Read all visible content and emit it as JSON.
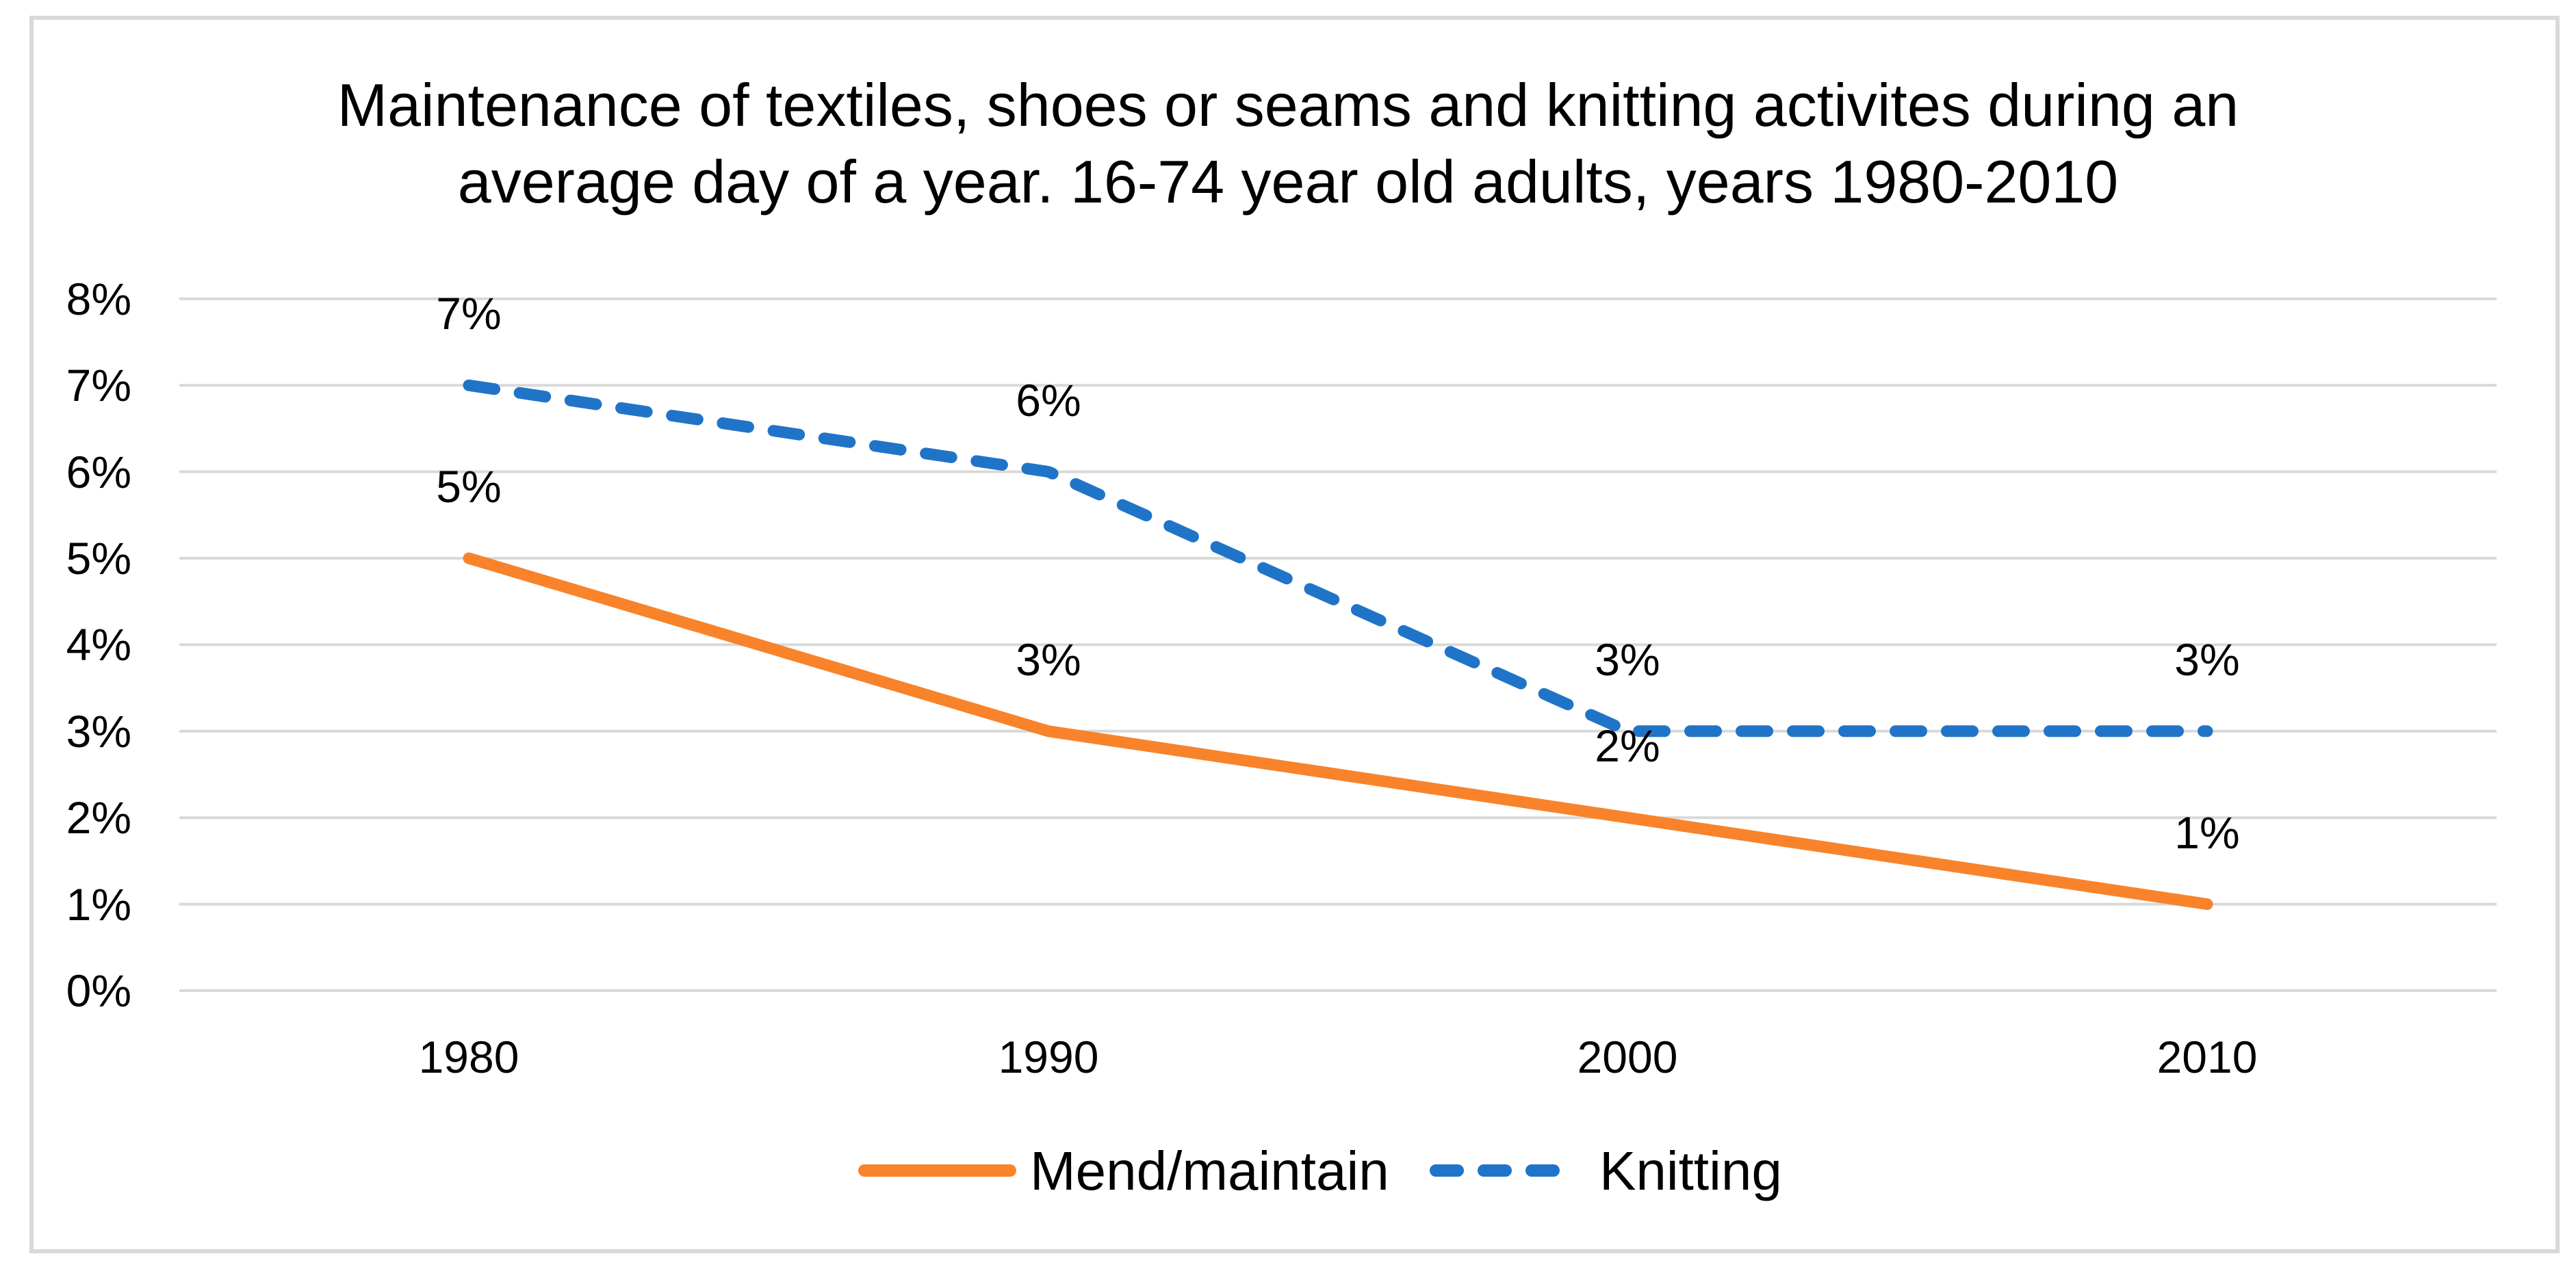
{
  "title": {
    "line1": "Maintenance of textiles, shoes or seams and knitting activites during an",
    "line2": "average day of a year. 16-74 year old adults, years 1980-2010"
  },
  "legend": {
    "position": "bottom",
    "items": [
      {
        "label": "Mend/maintain",
        "color": "#F8832B",
        "style": "solid"
      },
      {
        "label": "Knitting",
        "color": "#2074C8",
        "style": "dashed"
      }
    ]
  },
  "colors": {
    "mend": "#F8832B",
    "knitting": "#2074C8",
    "grid": "#D9D9D9",
    "border": "#D9D9D9",
    "text": "#000000"
  },
  "chart_data": {
    "type": "line",
    "title": "Maintenance of textiles, shoes or seams and knitting activites during an average day of a year. 16-74 year old adults, years 1980-2010",
    "categories": [
      "1980",
      "1990",
      "2000",
      "2010"
    ],
    "series": [
      {
        "name": "Mend/maintain",
        "values": [
          5,
          3,
          2,
          1
        ],
        "labels": [
          "5%",
          "3%",
          "2%",
          "1%"
        ],
        "color": "#F8832B",
        "style": "solid"
      },
      {
        "name": "Knitting",
        "values": [
          7,
          6,
          3,
          3
        ],
        "labels": [
          "7%",
          "6%",
          "3%",
          "3%"
        ],
        "color": "#2074C8",
        "style": "dashed"
      }
    ],
    "xlabel": "",
    "ylabel": "",
    "y_axis": {
      "min": 0,
      "max": 8,
      "unit": "%",
      "tick_labels": [
        "8%",
        "7%",
        "6%",
        "5%",
        "4%",
        "3%",
        "2%",
        "1%",
        "0%"
      ]
    },
    "grid": true,
    "data_labels_position": "above",
    "legend_position": "bottom"
  }
}
